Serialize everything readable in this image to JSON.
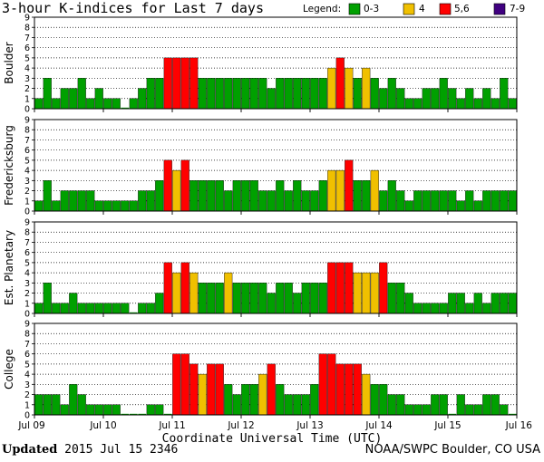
{
  "chart_data": {
    "type": "bar",
    "title": "3-hour K-indices for Last 7 days",
    "legend": {
      "label": "Legend:",
      "entries": [
        {
          "label": "0-3",
          "color": "#00a000"
        },
        {
          "label": "4",
          "color": "#f0c000"
        },
        {
          "label": "5,6",
          "color": "#ff0000"
        },
        {
          "label": "7-9",
          "color": "#400080"
        }
      ]
    },
    "xlabel": "Coordinate Universal Time (UTC)",
    "x_ticks": [
      "Jul 09",
      "Jul 10",
      "Jul 11",
      "Jul 12",
      "Jul 13",
      "Jul 14",
      "Jul 15",
      "Jul 16"
    ],
    "ylim": [
      0,
      9
    ],
    "y_ticks": [
      "0",
      "1",
      "2",
      "3",
      "4",
      "5",
      "6",
      "7",
      "8",
      "9"
    ],
    "bars_per_panel": 56,
    "series": [
      {
        "name": "Boulder",
        "values": [
          1,
          3,
          1,
          2,
          2,
          3,
          1,
          2,
          1,
          1,
          0,
          1,
          2,
          3,
          3,
          5,
          5,
          5,
          5,
          3,
          3,
          3,
          3,
          3,
          3,
          3,
          3,
          2,
          3,
          3,
          3,
          3,
          3,
          3,
          4,
          5,
          4,
          3,
          4,
          3,
          2,
          3,
          2,
          1,
          1,
          2,
          2,
          3,
          2,
          1,
          2,
          1,
          2,
          1,
          3,
          1
        ]
      },
      {
        "name": "Fredericksburg",
        "values": [
          1,
          3,
          1,
          2,
          2,
          2,
          2,
          1,
          1,
          1,
          1,
          1,
          2,
          2,
          3,
          5,
          4,
          5,
          3,
          3,
          3,
          3,
          2,
          3,
          3,
          3,
          2,
          2,
          3,
          2,
          3,
          2,
          2,
          3,
          4,
          4,
          5,
          3,
          3,
          4,
          2,
          3,
          2,
          1,
          2,
          2,
          2,
          2,
          2,
          1,
          2,
          1,
          2,
          2,
          2,
          2
        ]
      },
      {
        "name": "Est. Planetary",
        "values": [
          1,
          3,
          1,
          1,
          2,
          1,
          1,
          1,
          1,
          1,
          1,
          0,
          1,
          1,
          2,
          5,
          4,
          5,
          4,
          3,
          3,
          3,
          4,
          3,
          3,
          3,
          3,
          2,
          3,
          3,
          2,
          3,
          3,
          3,
          5,
          5,
          5,
          4,
          4,
          4,
          5,
          3,
          3,
          2,
          1,
          1,
          1,
          1,
          2,
          2,
          1,
          2,
          1,
          2,
          2,
          2
        ]
      },
      {
        "name": "College",
        "values": [
          2,
          2,
          2,
          1,
          3,
          2,
          1,
          1,
          1,
          1,
          0,
          0,
          0,
          1,
          1,
          0,
          6,
          6,
          5,
          4,
          5,
          5,
          3,
          2,
          3,
          3,
          4,
          5,
          3,
          2,
          2,
          2,
          3,
          6,
          6,
          5,
          5,
          5,
          4,
          3,
          3,
          2,
          2,
          1,
          1,
          1,
          2,
          2,
          0,
          2,
          1,
          1,
          2,
          2,
          1,
          0
        ]
      }
    ]
  },
  "footer": {
    "updated_label": "Updated",
    "updated_value": "2015 Jul 15 2346",
    "credit": "NOAA/SWPC Boulder, CO USA"
  }
}
